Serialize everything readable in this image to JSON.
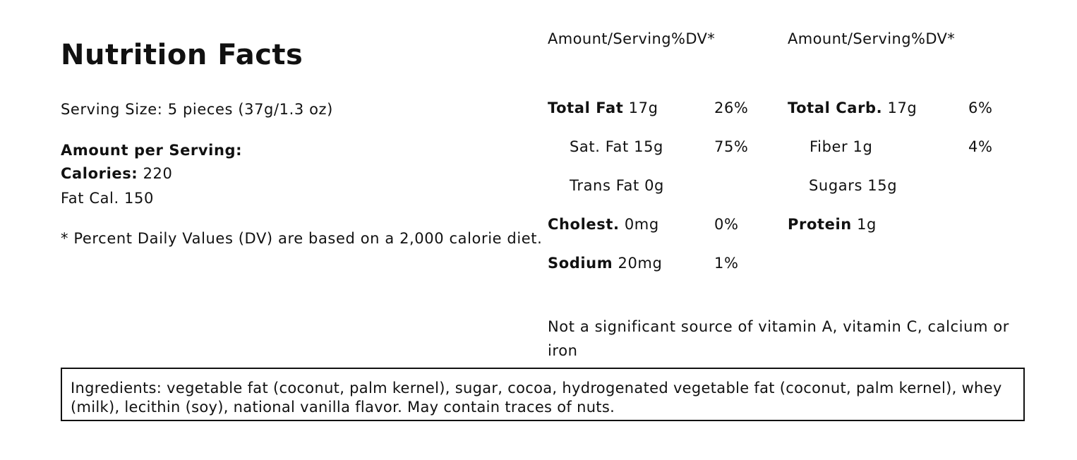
{
  "panel": {
    "title": "Nutrition Facts",
    "serving_size": "Serving Size: 5 pieces (37g/1.3 oz)",
    "amount_per_serving": "Amount per Serving:",
    "calories_label": "Calories:",
    "calories_value": " 220",
    "fat_cal": "Fat Cal. 150",
    "dv_footnote": "* Percent Daily Values (DV) are based on a 2,000 calorie diet."
  },
  "columns": {
    "left_header": "Amount/Serving%DV*",
    "right_header": "Amount/Serving%DV*"
  },
  "left_nutrients": [
    {
      "bold": "Total Fat",
      "amount": " 17g",
      "dv": "26%"
    },
    {
      "bold": "",
      "amount": "Sat. Fat 15g",
      "dv": "75%"
    },
    {
      "bold": "",
      "amount": "Trans Fat 0g",
      "dv": ""
    },
    {
      "bold": "Cholest.",
      "amount": " 0mg",
      "dv": "0%"
    },
    {
      "bold": "Sodium",
      "amount": " 20mg",
      "dv": "1%"
    }
  ],
  "right_nutrients": [
    {
      "bold": "Total Carb.",
      "amount": " 17g",
      "dv": "6%"
    },
    {
      "bold": "",
      "amount": "Fiber 1g",
      "dv": "4%"
    },
    {
      "bold": "",
      "amount": "Sugars 15g",
      "dv": ""
    },
    {
      "bold": "Protein",
      "amount": " 1g",
      "dv": ""
    }
  ],
  "vitamin_note": "Not a significant source of vitamin A, vitamin C, calcium or iron",
  "ingredients": "Ingredients: vegetable fat (coconut, palm kernel), sugar, cocoa, hydrogenated vegetable fat (coconut, palm kernel), whey (milk), lecithin (soy), national vanilla flavor. May contain traces of nuts."
}
